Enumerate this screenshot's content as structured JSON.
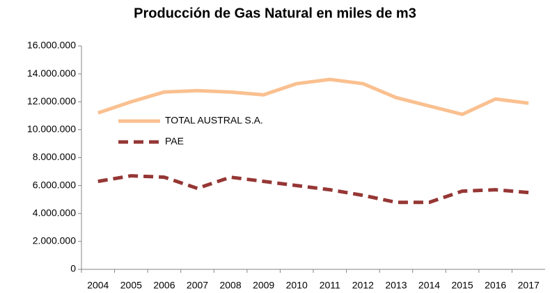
{
  "chart_data": {
    "type": "line",
    "title": "Producción de Gas Natural en miles de m3",
    "categories": [
      "2004",
      "2005",
      "2006",
      "2007",
      "2008",
      "2009",
      "2010",
      "2011",
      "2012",
      "2013",
      "2014",
      "2015",
      "2016",
      "2017"
    ],
    "series": [
      {
        "name": "TOTAL AUSTRAL S.A.",
        "color": "#fac090",
        "dashed": false,
        "values": [
          11200000,
          12000000,
          12700000,
          12800000,
          12700000,
          12500000,
          13300000,
          13600000,
          13300000,
          12300000,
          11700000,
          11100000,
          12200000,
          11900000
        ]
      },
      {
        "name": "PAE",
        "color": "#953735",
        "dashed": true,
        "values": [
          6300000,
          6700000,
          6600000,
          5800000,
          6600000,
          6300000,
          6000000,
          5700000,
          5300000,
          4800000,
          4800000,
          5600000,
          5700000,
          5500000
        ]
      }
    ],
    "ylim": [
      0,
      16000000
    ],
    "yticks": [
      0,
      {
        "value": 2000000,
        "label": "2.000.000"
      },
      {
        "value": 4000000,
        "label": "4.000.000"
      },
      {
        "value": 6000000,
        "label": "6.000.000"
      },
      {
        "value": 8000000,
        "label": "8.000.000"
      },
      {
        "value": 10000000,
        "label": "10.000.000"
      },
      {
        "value": 12000000,
        "label": "12.000.000"
      },
      {
        "value": 14000000,
        "label": "14.000.000"
      },
      {
        "value": 16000000,
        "label": "16.000.000"
      }
    ],
    "grid": false,
    "legend": "upper left"
  }
}
